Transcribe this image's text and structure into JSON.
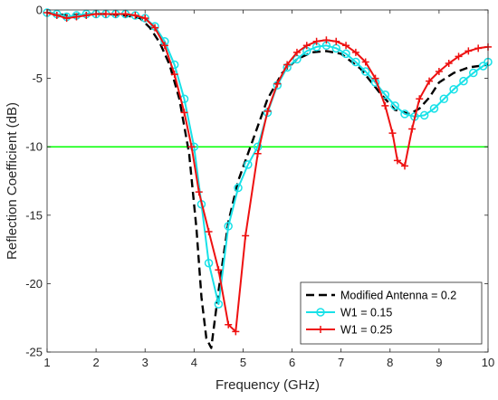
{
  "chart_data": {
    "type": "line",
    "xlabel": "Frequency  (GHz)",
    "ylabel": "Reflection Coefficient  (dB)",
    "xlim": [
      1,
      10
    ],
    "ylim": [
      -25,
      0
    ],
    "xticks": [
      "1",
      "2",
      "3",
      "4",
      "5",
      "6",
      "7",
      "8",
      "9",
      "10"
    ],
    "yticks": [
      "0",
      "-5",
      "-10",
      "-15",
      "-20",
      "-25"
    ],
    "grid": false,
    "legend_position": "bottom-right",
    "reference_line": {
      "y": -10,
      "color": "#00ff00"
    },
    "series": [
      {
        "name": "Modified Antenna = 0.2",
        "color": "#000000",
        "style": "dashed",
        "marker": "none",
        "x": [
          1.0,
          1.4,
          1.8,
          2.2,
          2.6,
          2.9,
          3.1,
          3.3,
          3.5,
          3.7,
          3.9,
          4.05,
          4.15,
          4.25,
          4.35,
          4.5,
          4.7,
          4.9,
          5.2,
          5.5,
          5.8,
          6.1,
          6.4,
          6.7,
          7.0,
          7.4,
          7.8,
          8.1,
          8.4,
          8.6,
          8.8,
          9.0,
          9.3,
          9.6,
          10.0
        ],
        "y": [
          -0.2,
          -0.4,
          -0.3,
          -0.3,
          -0.4,
          -0.6,
          -1.3,
          -2.4,
          -4.0,
          -6.5,
          -10.5,
          -16.0,
          -21.0,
          -24.0,
          -24.7,
          -20.5,
          -15.5,
          -12.5,
          -9.5,
          -6.5,
          -4.6,
          -3.6,
          -3.1,
          -3.0,
          -3.2,
          -4.3,
          -6.1,
          -7.3,
          -7.6,
          -7.2,
          -6.4,
          -5.3,
          -4.6,
          -4.2,
          -4.0
        ]
      },
      {
        "name": "W1 = 0.15",
        "color": "#18e1e8",
        "style": "solid",
        "marker": "circle",
        "x": [
          1.0,
          1.2,
          1.4,
          1.6,
          1.8,
          2.0,
          2.2,
          2.4,
          2.6,
          2.8,
          3.0,
          3.2,
          3.4,
          3.6,
          3.8,
          4.0,
          4.15,
          4.3,
          4.5,
          4.7,
          4.9,
          5.1,
          5.3,
          5.5,
          5.7,
          5.9,
          6.1,
          6.3,
          6.5,
          6.7,
          6.9,
          7.1,
          7.3,
          7.5,
          7.7,
          7.9,
          8.1,
          8.3,
          8.5,
          8.7,
          8.9,
          9.1,
          9.3,
          9.5,
          9.7,
          9.9,
          10.0
        ],
        "y": [
          -0.2,
          -0.3,
          -0.5,
          -0.4,
          -0.3,
          -0.3,
          -0.3,
          -0.3,
          -0.3,
          -0.4,
          -0.6,
          -1.2,
          -2.3,
          -4.0,
          -6.5,
          -10.0,
          -14.2,
          -18.5,
          -21.5,
          -15.8,
          -13.0,
          -11.3,
          -10.0,
          -7.5,
          -5.5,
          -4.2,
          -3.6,
          -3.0,
          -2.7,
          -2.6,
          -2.8,
          -3.2,
          -3.8,
          -4.5,
          -5.3,
          -6.2,
          -7.0,
          -7.6,
          -7.8,
          -7.7,
          -7.2,
          -6.5,
          -5.8,
          -5.2,
          -4.6,
          -4.1,
          -3.8
        ]
      },
      {
        "name": "W1 = 0.25",
        "color": "#ee1111",
        "style": "solid",
        "marker": "plus",
        "x": [
          1.0,
          1.2,
          1.4,
          1.6,
          1.8,
          2.0,
          2.2,
          2.4,
          2.6,
          2.8,
          3.0,
          3.2,
          3.4,
          3.6,
          3.8,
          3.95,
          4.1,
          4.3,
          4.5,
          4.7,
          4.85,
          5.05,
          5.3,
          5.5,
          5.7,
          5.9,
          6.1,
          6.3,
          6.5,
          6.7,
          6.9,
          7.1,
          7.3,
          7.5,
          7.7,
          7.9,
          8.05,
          8.15,
          8.3,
          8.45,
          8.6,
          8.8,
          9.0,
          9.2,
          9.4,
          9.6,
          9.8,
          10.0
        ],
        "y": [
          -0.2,
          -0.4,
          -0.6,
          -0.5,
          -0.4,
          -0.3,
          -0.3,
          -0.3,
          -0.3,
          -0.4,
          -0.6,
          -1.3,
          -2.6,
          -4.7,
          -7.5,
          -10.0,
          -13.3,
          -16.2,
          -19.0,
          -23.0,
          -23.5,
          -16.5,
          -10.5,
          -7.4,
          -5.4,
          -4.0,
          -3.1,
          -2.6,
          -2.3,
          -2.2,
          -2.3,
          -2.6,
          -3.1,
          -3.8,
          -5.0,
          -7.0,
          -9.0,
          -11.0,
          -11.4,
          -8.7,
          -6.5,
          -5.2,
          -4.5,
          -3.9,
          -3.4,
          -3.0,
          -2.8,
          -2.7
        ]
      }
    ]
  }
}
